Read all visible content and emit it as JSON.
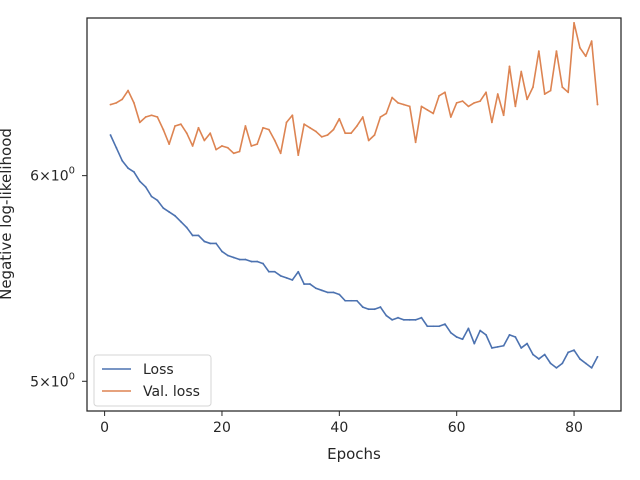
{
  "chart_data": {
    "type": "line",
    "title": "",
    "xlabel": "Epochs",
    "ylabel": "Negative log-likelihood",
    "yscale": "log",
    "xlim": [
      -3,
      88
    ],
    "ylim": [
      4.87,
      6.9
    ],
    "x_ticks": [
      0,
      20,
      40,
      60,
      80
    ],
    "x_tick_labels": [
      "0",
      "20",
      "40",
      "60",
      "80"
    ],
    "y_ticks": [
      5,
      6
    ],
    "y_tick_labels": [
      {
        "base": "5",
        "exp": "0"
      },
      {
        "base": "6",
        "exp": "0"
      }
    ],
    "grid": false,
    "legend_position": "lower-left",
    "x": [
      1,
      2,
      3,
      4,
      5,
      6,
      7,
      8,
      9,
      10,
      11,
      12,
      13,
      14,
      15,
      16,
      17,
      18,
      19,
      20,
      21,
      22,
      23,
      24,
      25,
      26,
      27,
      28,
      29,
      30,
      31,
      32,
      33,
      34,
      35,
      36,
      37,
      38,
      39,
      40,
      41,
      42,
      43,
      44,
      45,
      46,
      47,
      48,
      49,
      50,
      51,
      52,
      53,
      54,
      55,
      56,
      57,
      58,
      59,
      60,
      61,
      62,
      63,
      64,
      65,
      66,
      67,
      68,
      69,
      70,
      71,
      72,
      73,
      74,
      75,
      76,
      77,
      78,
      79,
      80,
      81,
      82,
      83,
      84
    ],
    "series": [
      {
        "name": "Loss",
        "color": "#4c72b0",
        "values": [
          6.22,
          6.15,
          6.08,
          6.04,
          6.02,
          5.97,
          5.94,
          5.89,
          5.87,
          5.83,
          5.81,
          5.79,
          5.76,
          5.73,
          5.69,
          5.69,
          5.66,
          5.65,
          5.65,
          5.61,
          5.59,
          5.58,
          5.57,
          5.57,
          5.56,
          5.56,
          5.55,
          5.51,
          5.51,
          5.49,
          5.48,
          5.47,
          5.51,
          5.45,
          5.45,
          5.43,
          5.42,
          5.41,
          5.41,
          5.4,
          5.37,
          5.37,
          5.37,
          5.34,
          5.33,
          5.33,
          5.34,
          5.3,
          5.28,
          5.29,
          5.28,
          5.28,
          5.28,
          5.29,
          5.25,
          5.25,
          5.25,
          5.26,
          5.22,
          5.2,
          5.19,
          5.24,
          5.17,
          5.23,
          5.21,
          5.15,
          5.155,
          5.16,
          5.21,
          5.2,
          5.15,
          5.17,
          5.12,
          5.1,
          5.12,
          5.08,
          5.06,
          5.08,
          5.13,
          5.14,
          5.1,
          5.08,
          5.06,
          5.11
        ]
      },
      {
        "name": "Val. loss",
        "color": "#dd8452",
        "values": [
          6.39,
          6.4,
          6.42,
          6.47,
          6.4,
          6.29,
          6.32,
          6.33,
          6.32,
          6.25,
          6.17,
          6.27,
          6.28,
          6.23,
          6.16,
          6.26,
          6.19,
          6.23,
          6.14,
          6.16,
          6.15,
          6.12,
          6.13,
          6.27,
          6.16,
          6.17,
          6.26,
          6.25,
          6.19,
          6.12,
          6.29,
          6.33,
          6.11,
          6.28,
          6.26,
          6.24,
          6.21,
          6.22,
          6.25,
          6.31,
          6.23,
          6.23,
          6.27,
          6.32,
          6.19,
          6.22,
          6.32,
          6.34,
          6.43,
          6.4,
          6.39,
          6.38,
          6.18,
          6.38,
          6.36,
          6.34,
          6.44,
          6.46,
          6.32,
          6.4,
          6.41,
          6.38,
          6.4,
          6.41,
          6.46,
          6.29,
          6.45,
          6.33,
          6.61,
          6.38,
          6.58,
          6.42,
          6.49,
          6.7,
          6.45,
          6.47,
          6.7,
          6.49,
          6.46,
          6.87,
          6.72,
          6.67,
          6.76,
          6.39
        ]
      }
    ]
  }
}
